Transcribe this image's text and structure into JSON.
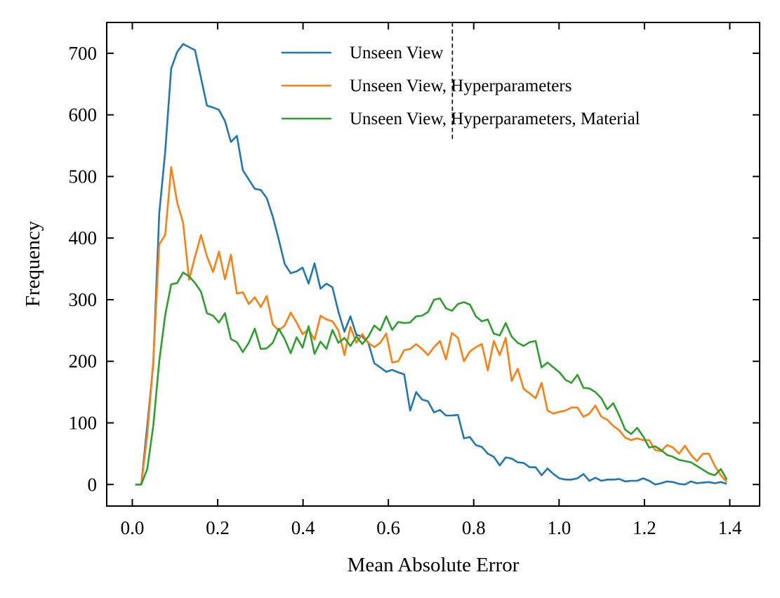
{
  "chart_data": {
    "type": "line",
    "xlabel": "Mean Absolute Error",
    "ylabel": "Frequency",
    "xlim": [
      -0.06,
      1.47
    ],
    "ylim": [
      -35,
      750
    ],
    "xticks": [
      0.0,
      0.2,
      0.4,
      0.6,
      0.8,
      1.0,
      1.2,
      1.4
    ],
    "xtick_labels": [
      "0.0",
      "0.2",
      "0.4",
      "0.6",
      "0.8",
      "1.0",
      "1.2",
      "1.4"
    ],
    "yticks": [
      0,
      100,
      200,
      300,
      400,
      500,
      600,
      700
    ],
    "ytick_labels": [
      "0",
      "100",
      "200",
      "300",
      "400",
      "500",
      "600",
      "700"
    ],
    "grid": false,
    "legend_position": "top-right",
    "vline": {
      "x": 0.75,
      "ymax": 560,
      "style": "dashed",
      "color": "#000000"
    },
    "series": [
      {
        "name": "Unseen View",
        "color": "#1f77b4",
        "x": [
          0.007,
          0.021,
          0.035,
          0.049,
          0.063,
          0.077,
          0.091,
          0.105,
          0.119,
          0.133,
          0.147,
          0.161,
          0.175,
          0.189,
          0.203,
          0.217,
          0.231,
          0.245,
          0.259,
          0.273,
          0.287,
          0.301,
          0.315,
          0.329,
          0.343,
          0.357,
          0.371,
          0.385,
          0.399,
          0.413,
          0.427,
          0.441,
          0.455,
          0.469,
          0.483,
          0.497,
          0.511,
          0.525,
          0.539,
          0.553,
          0.567,
          0.581,
          0.595,
          0.609,
          0.623,
          0.637,
          0.651,
          0.665,
          0.679,
          0.693,
          0.707,
          0.721,
          0.735,
          0.749,
          0.763,
          0.777,
          0.791,
          0.805,
          0.819,
          0.833,
          0.847,
          0.861,
          0.875,
          0.889,
          0.903,
          0.917,
          0.931,
          0.945,
          0.959,
          0.973,
          0.987,
          1.001,
          1.015,
          1.029,
          1.043,
          1.057,
          1.071,
          1.085,
          1.099,
          1.113,
          1.127,
          1.141,
          1.155,
          1.169,
          1.183,
          1.197,
          1.211,
          1.225,
          1.239,
          1.253,
          1.267,
          1.281,
          1.295,
          1.309,
          1.323,
          1.337,
          1.351,
          1.365,
          1.379,
          1.393
        ],
        "values": [
          0,
          0,
          95,
          195,
          440,
          540,
          675,
          702,
          715,
          710,
          705,
          660,
          615,
          612,
          608,
          590,
          556,
          566,
          510,
          495,
          480,
          478,
          465,
          435,
          398,
          358,
          343,
          346,
          352,
          326,
          359,
          318,
          326,
          320,
          280,
          248,
          273,
          243,
          240,
          230,
          197,
          190,
          183,
          186,
          182,
          179,
          120,
          150,
          138,
          135,
          117,
          121,
          112,
          112,
          113,
          75,
          77,
          64,
          61,
          50,
          45,
          31,
          44,
          42,
          36,
          35,
          28,
          28,
          15,
          26,
          17,
          10,
          8,
          8,
          10,
          17,
          6,
          11,
          6,
          8,
          8,
          9,
          5,
          6,
          6,
          10,
          6,
          0,
          2,
          5,
          4,
          1,
          0,
          5,
          2,
          3,
          4,
          2,
          4,
          1
        ]
      },
      {
        "name": "Unseen View, Hyperparameters",
        "color": "#ff7f0e",
        "x": [
          0.007,
          0.021,
          0.035,
          0.049,
          0.063,
          0.077,
          0.091,
          0.105,
          0.119,
          0.133,
          0.147,
          0.161,
          0.175,
          0.189,
          0.203,
          0.217,
          0.231,
          0.245,
          0.259,
          0.273,
          0.287,
          0.301,
          0.315,
          0.329,
          0.343,
          0.357,
          0.371,
          0.385,
          0.399,
          0.413,
          0.427,
          0.441,
          0.455,
          0.469,
          0.483,
          0.497,
          0.511,
          0.525,
          0.539,
          0.553,
          0.567,
          0.581,
          0.595,
          0.609,
          0.623,
          0.637,
          0.651,
          0.665,
          0.679,
          0.693,
          0.707,
          0.721,
          0.735,
          0.749,
          0.763,
          0.777,
          0.791,
          0.805,
          0.819,
          0.833,
          0.847,
          0.861,
          0.875,
          0.889,
          0.903,
          0.917,
          0.931,
          0.945,
          0.959,
          0.973,
          0.987,
          1.001,
          1.015,
          1.029,
          1.043,
          1.057,
          1.071,
          1.085,
          1.099,
          1.113,
          1.127,
          1.141,
          1.155,
          1.169,
          1.183,
          1.197,
          1.211,
          1.225,
          1.239,
          1.253,
          1.267,
          1.281,
          1.295,
          1.309,
          1.323,
          1.337,
          1.351,
          1.365,
          1.379,
          1.393
        ],
        "values": [
          0,
          0,
          80,
          200,
          390,
          405,
          515,
          458,
          425,
          332,
          370,
          405,
          370,
          345,
          378,
          333,
          373,
          310,
          312,
          293,
          304,
          288,
          306,
          260,
          250,
          258,
          279,
          263,
          244,
          252,
          235,
          274,
          268,
          265,
          250,
          210,
          256,
          230,
          244,
          230,
          223,
          230,
          245,
          198,
          200,
          218,
          220,
          228,
          220,
          210,
          223,
          233,
          203,
          246,
          238,
          200,
          216,
          223,
          228,
          185,
          233,
          210,
          238,
          168,
          188,
          155,
          148,
          140,
          165,
          120,
          115,
          118,
          120,
          125,
          125,
          110,
          115,
          128,
          110,
          105,
          95,
          88,
          76,
          72,
          75,
          72,
          72,
          56,
          54,
          64,
          60,
          50,
          63,
          48,
          38,
          50,
          50,
          30,
          15,
          4
        ]
      },
      {
        "name": "Unseen View, Hyperparameters, Material",
        "color": "#2ca02c",
        "x": [
          0.007,
          0.021,
          0.035,
          0.049,
          0.063,
          0.077,
          0.091,
          0.105,
          0.119,
          0.133,
          0.147,
          0.161,
          0.175,
          0.189,
          0.203,
          0.217,
          0.231,
          0.245,
          0.259,
          0.273,
          0.287,
          0.301,
          0.315,
          0.329,
          0.343,
          0.357,
          0.371,
          0.385,
          0.399,
          0.413,
          0.427,
          0.441,
          0.455,
          0.469,
          0.483,
          0.497,
          0.511,
          0.525,
          0.539,
          0.553,
          0.567,
          0.581,
          0.595,
          0.609,
          0.623,
          0.637,
          0.651,
          0.665,
          0.679,
          0.693,
          0.707,
          0.721,
          0.735,
          0.749,
          0.763,
          0.777,
          0.791,
          0.805,
          0.819,
          0.833,
          0.847,
          0.861,
          0.875,
          0.889,
          0.903,
          0.917,
          0.931,
          0.945,
          0.959,
          0.973,
          0.987,
          1.001,
          1.015,
          1.029,
          1.043,
          1.057,
          1.071,
          1.085,
          1.099,
          1.113,
          1.127,
          1.141,
          1.155,
          1.169,
          1.183,
          1.197,
          1.211,
          1.225,
          1.239,
          1.253,
          1.267,
          1.281,
          1.295,
          1.309,
          1.323,
          1.337,
          1.351,
          1.365,
          1.379,
          1.393
        ],
        "values": [
          0,
          0,
          25,
          95,
          200,
          275,
          325,
          327,
          344,
          338,
          327,
          313,
          278,
          274,
          263,
          278,
          236,
          231,
          215,
          230,
          253,
          220,
          221,
          230,
          253,
          236,
          213,
          239,
          222,
          257,
          212,
          232,
          220,
          251,
          230,
          238,
          225,
          240,
          228,
          240,
          258,
          250,
          273,
          251,
          264,
          262,
          263,
          273,
          274,
          280,
          300,
          302,
          286,
          282,
          293,
          296,
          292,
          273,
          265,
          268,
          245,
          242,
          262,
          240,
          230,
          225,
          231,
          233,
          190,
          198,
          190,
          182,
          170,
          165,
          178,
          157,
          156,
          150,
          140,
          122,
          132,
          112,
          89,
          82,
          92,
          78,
          60,
          62,
          56,
          48,
          45,
          40,
          38,
          36,
          30,
          24,
          18,
          15,
          25,
          8
        ]
      }
    ]
  }
}
